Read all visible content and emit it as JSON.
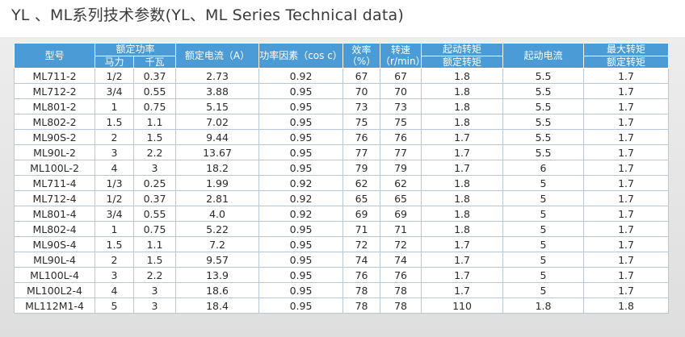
{
  "title": "YL 、ML系列技术参数(YL、ML Series Technical data)",
  "table": {
    "headers": {
      "model": "型号",
      "rated_power": "额定功率",
      "power_hp": "马力",
      "power_kw": "千瓦",
      "rated_current": "额定电流（A）",
      "power_factor": "功率因素（cos c）",
      "efficiency": "效率（%）",
      "speed": "转速（r/min）",
      "starting_torque_top": "起动转矩",
      "starting_torque_bottom": "额定转矩",
      "starting_current": "起动电流",
      "max_torque_top": "最大转矩",
      "max_torque_bottom": "额定转矩"
    },
    "rows": [
      [
        "ML711-2",
        "1/2",
        "0.37",
        "2.73",
        "0.92",
        "67",
        "67",
        "1.8",
        "5.5",
        "1.7"
      ],
      [
        "ML712-2",
        "3/4",
        "0.55",
        "3.88",
        "0.95",
        "70",
        "70",
        "1.8",
        "5.5",
        "1.7"
      ],
      [
        "ML801-2",
        "1",
        "0.75",
        "5.15",
        "0.95",
        "73",
        "73",
        "1.8",
        "5.5",
        "1.7"
      ],
      [
        "ML802-2",
        "1.5",
        "1.1",
        "7.02",
        "0.95",
        "75",
        "75",
        "1.8",
        "5.5",
        "1.7"
      ],
      [
        "ML90S-2",
        "2",
        "1.5",
        "9.44",
        "0.95",
        "76",
        "76",
        "1.7",
        "5.5",
        "1.7"
      ],
      [
        "ML90L-2",
        "3",
        "2.2",
        "13.67",
        "0.95",
        "77",
        "77",
        "1.7",
        "5.5",
        "1.7"
      ],
      [
        "ML100L-2",
        "4",
        "3",
        "18.2",
        "0.95",
        "79",
        "79",
        "1.7",
        "6",
        "1.7"
      ],
      [
        "ML711-4",
        "1/3",
        "0.25",
        "1.99",
        "0.92",
        "62",
        "62",
        "1.8",
        "5",
        "1.7"
      ],
      [
        "ML712-4",
        "1/2",
        "0.37",
        "2.81",
        "0.92",
        "65",
        "65",
        "1.8",
        "5",
        "1.7"
      ],
      [
        "ML801-4",
        "3/4",
        "0.55",
        "4.0",
        "0.92",
        "69",
        "69",
        "1.8",
        "5",
        "1.7"
      ],
      [
        "ML802-4",
        "1",
        "0.75",
        "5.22",
        "0.95",
        "71",
        "71",
        "1.8",
        "5",
        "1.7"
      ],
      [
        "ML90S-4",
        "1.5",
        "1.1",
        "7.2",
        "0.95",
        "72",
        "72",
        "1.7",
        "5",
        "1.7"
      ],
      [
        "ML90L-4",
        "2",
        "1.5",
        "9.57",
        "0.95",
        "74",
        "74",
        "1.7",
        "5",
        "1.7"
      ],
      [
        "ML100L-4",
        "3",
        "2.2",
        "13.9",
        "0.95",
        "76",
        "76",
        "1.7",
        "5",
        "1.7"
      ],
      [
        "ML100L2-4",
        "4",
        "3",
        "18.6",
        "0.95",
        "78",
        "78",
        "1.7",
        "5",
        "1.7"
      ],
      [
        "ML112M1-4",
        "5",
        "3",
        "18.4",
        "0.95",
        "78",
        "78",
        "110",
        "1.8",
        "1.8"
      ]
    ]
  }
}
